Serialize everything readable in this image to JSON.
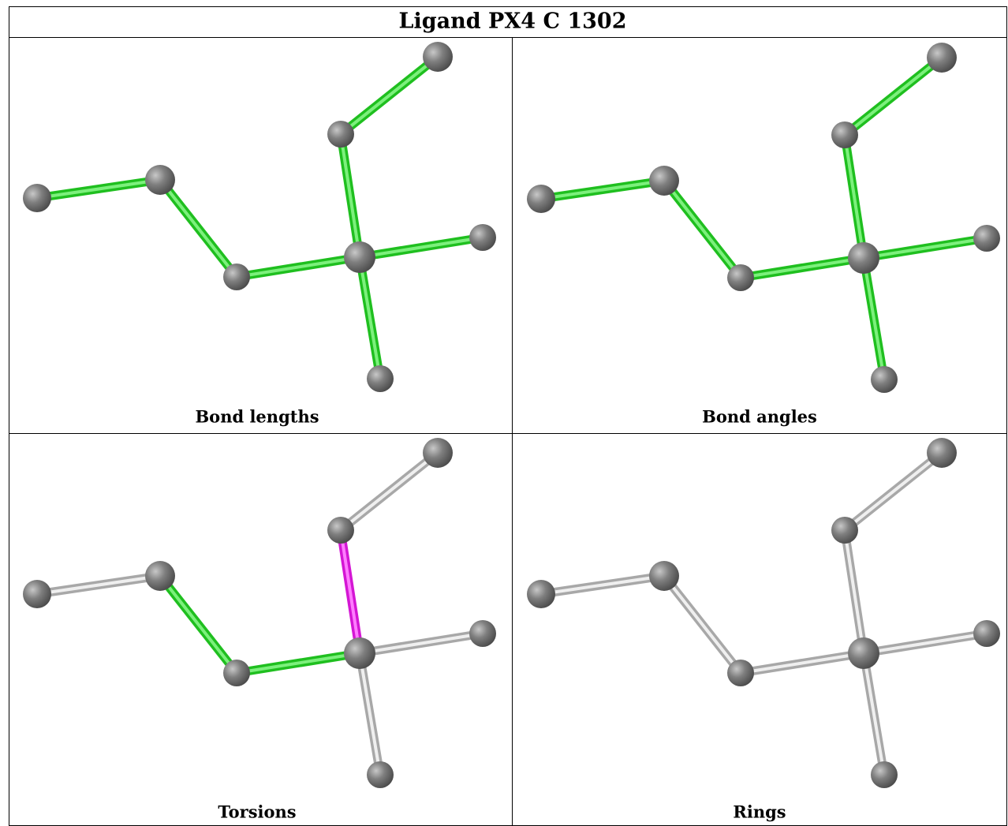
{
  "title": "Ligand PX4 C 1302",
  "panels": [
    {
      "caption": "Bond lengths"
    },
    {
      "caption": "Bond angles"
    },
    {
      "caption": "Torsions"
    },
    {
      "caption": "Rings"
    }
  ]
}
